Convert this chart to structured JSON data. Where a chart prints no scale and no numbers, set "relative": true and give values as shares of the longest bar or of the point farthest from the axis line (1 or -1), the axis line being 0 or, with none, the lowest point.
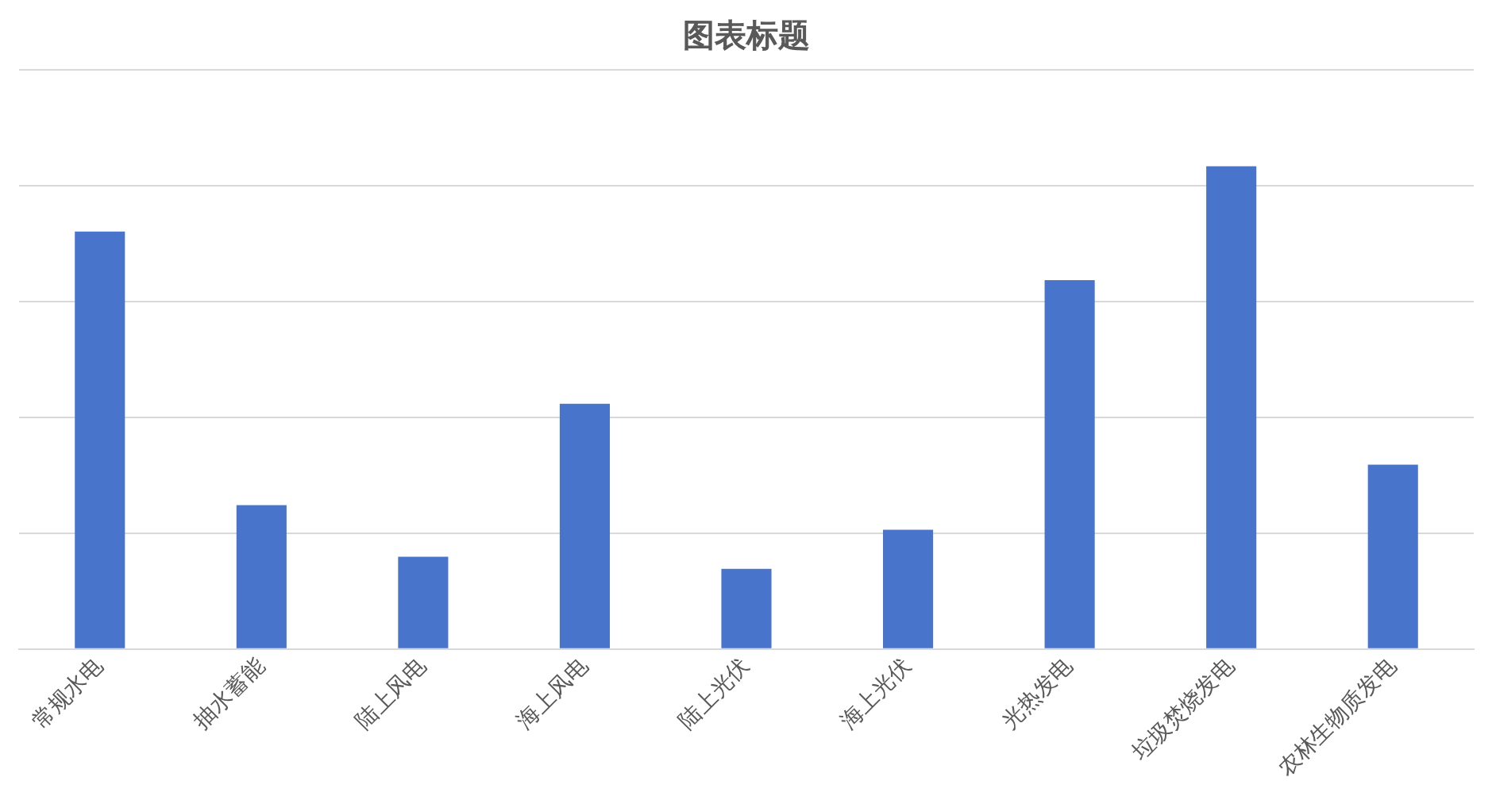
{
  "chart_data": {
    "type": "bar",
    "title": "图表标题",
    "categories": [
      "常规水电",
      "抽水蓄能",
      "陆上风电",
      "海上风电",
      "陆上光伏",
      "海上光伏",
      "光热发电",
      "垃圾焚烧发电",
      "农林生物质发电"
    ],
    "values": [
      0.865,
      0.298,
      0.191,
      0.508,
      0.166,
      0.247,
      0.764,
      1,
      0.382
    ],
    "color": "#4874cb",
    "relative": true,
    "grid": "y",
    "legend": false
  }
}
